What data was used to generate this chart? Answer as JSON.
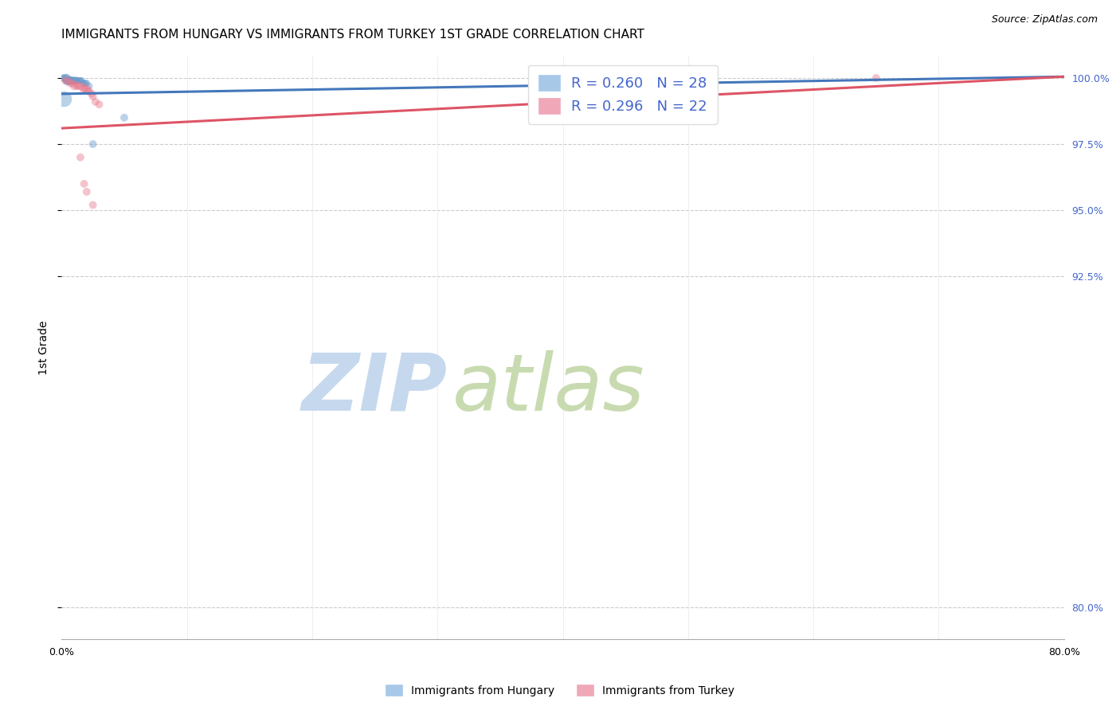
{
  "title": "IMMIGRANTS FROM HUNGARY VS IMMIGRANTS FROM TURKEY 1ST GRADE CORRELATION CHART",
  "source": "Source: ZipAtlas.com",
  "xlabel_bottom": "Immigrants from Hungary",
  "xlabel_bottom2": "Immigrants from Turkey",
  "ylabel": "1st Grade",
  "xlim": [
    0.0,
    0.8
  ],
  "ylim": [
    0.788,
    1.008
  ],
  "xticks": [
    0.0,
    0.1,
    0.2,
    0.3,
    0.4,
    0.5,
    0.6,
    0.7,
    0.8
  ],
  "xticklabels": [
    "0.0%",
    "",
    "",
    "",
    "",
    "",
    "",
    "",
    "80.0%"
  ],
  "yticks": [
    0.8,
    0.925,
    0.95,
    0.975,
    1.0
  ],
  "yticklabels_right": [
    "80.0%",
    "92.5%",
    "95.0%",
    "97.5%",
    "100.0%"
  ],
  "grid_color": "#cccccc",
  "background_color": "#ffffff",
  "watermark_ZIP": "ZIP",
  "watermark_atlas": "atlas",
  "watermark_color_zip": "#c5d8ee",
  "watermark_color_atlas": "#c8dbb0",
  "legend_R_hungary": "R = 0.260",
  "legend_N_hungary": "N = 28",
  "legend_R_turkey": "R = 0.296",
  "legend_N_turkey": "N = 22",
  "legend_color_hungary": "#a8c8e8",
  "legend_color_turkey": "#f0a8b8",
  "hungary_color": "#6699cc",
  "turkey_color": "#e87a8e",
  "hungary_line_color": "#4477bb",
  "turkey_line_color": "#dd5566",
  "hungary_dots_x": [
    0.001,
    0.002,
    0.003,
    0.004,
    0.004,
    0.005,
    0.005,
    0.006,
    0.006,
    0.007,
    0.008,
    0.008,
    0.009,
    0.01,
    0.011,
    0.012,
    0.013,
    0.014,
    0.015,
    0.016,
    0.017,
    0.018,
    0.019,
    0.02,
    0.022,
    0.025,
    0.05,
    0.002
  ],
  "hungary_dots_y": [
    1.0,
    1.0,
    1.0,
    1.0,
    0.999,
    0.999,
    0.999,
    0.999,
    0.999,
    0.999,
    0.999,
    0.999,
    0.999,
    0.999,
    0.999,
    0.999,
    0.999,
    0.999,
    0.999,
    0.999,
    0.998,
    0.998,
    0.998,
    0.998,
    0.997,
    0.975,
    0.985,
    0.992
  ],
  "hungary_dots_size": [
    40,
    50,
    50,
    60,
    50,
    80,
    60,
    50,
    60,
    60,
    50,
    50,
    50,
    50,
    50,
    50,
    40,
    40,
    40,
    40,
    40,
    40,
    40,
    40,
    40,
    50,
    50,
    200
  ],
  "turkey_dots_x": [
    0.003,
    0.005,
    0.007,
    0.009,
    0.01,
    0.012,
    0.013,
    0.015,
    0.017,
    0.018,
    0.02,
    0.021,
    0.022,
    0.024,
    0.025,
    0.027,
    0.03,
    0.015,
    0.018,
    0.02,
    0.025,
    0.65
  ],
  "turkey_dots_y": [
    0.999,
    0.999,
    0.998,
    0.998,
    0.997,
    0.997,
    0.997,
    0.997,
    0.996,
    0.996,
    0.996,
    0.995,
    0.995,
    0.994,
    0.993,
    0.991,
    0.99,
    0.97,
    0.96,
    0.957,
    0.952,
    1.0
  ],
  "turkey_dots_size": [
    50,
    50,
    50,
    50,
    60,
    50,
    50,
    60,
    50,
    50,
    60,
    50,
    50,
    50,
    50,
    50,
    50,
    50,
    50,
    50,
    50,
    50
  ],
  "hungary_trendline_x": [
    0.0,
    0.8
  ],
  "hungary_trendline_y": [
    0.994,
    1.0005
  ],
  "turkey_trendline_x": [
    0.0,
    0.8
  ],
  "turkey_trendline_y": [
    0.981,
    1.0005
  ],
  "text_color_blue": "#4466cc",
  "title_fontsize": 11,
  "axis_fontsize": 9,
  "tick_fontsize": 9
}
